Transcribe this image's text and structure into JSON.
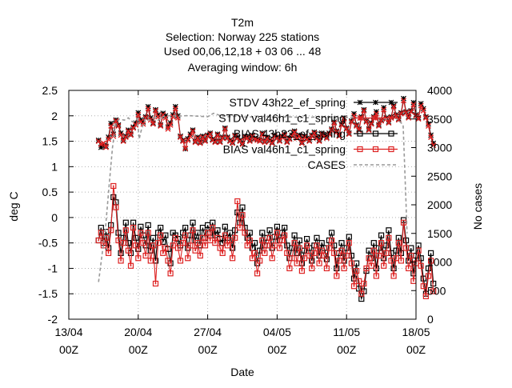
{
  "chart_data": {
    "type": "line",
    "title_lines": [
      "T2m",
      "Selection: Norway    225 stations",
      "Used  00,06,12,18  + 03 06 ... 48",
      "Averaging window:  6h"
    ],
    "xlabel": "Date",
    "ylabel": "deg C",
    "y2label": "No cases",
    "xlim_days": [
      13,
      48
    ],
    "ylim": [
      -2,
      2.5
    ],
    "y2lim": [
      0,
      4000
    ],
    "x_ticks": [
      {
        "day": 13,
        "label1": "13/04",
        "label2": "00Z"
      },
      {
        "day": 20,
        "label1": "20/04",
        "label2": "00Z"
      },
      {
        "day": 27,
        "label1": "27/04",
        "label2": "00Z"
      },
      {
        "day": 34,
        "label1": "04/05",
        "label2": "00Z"
      },
      {
        "day": 41,
        "label1": "11/05",
        "label2": "00Z"
      },
      {
        "day": 48,
        "label1": "18/05",
        "label2": "00Z"
      }
    ],
    "y_ticks": [
      -2,
      -1.5,
      -1,
      -0.5,
      0,
      0.5,
      1,
      1.5,
      2,
      2.5
    ],
    "y2_ticks": [
      0,
      500,
      1000,
      1500,
      2000,
      2500,
      3000,
      3500,
      4000
    ],
    "grid": true,
    "legend_position": "top-right",
    "series": [
      {
        "name": "STDV 43h22_ef_spring",
        "axis": "y",
        "color": "#000000",
        "marker": "star",
        "x_start": 16.0,
        "x_step": 0.25,
        "values": [
          1.52,
          1.38,
          1.42,
          1.4,
          1.58,
          1.85,
          1.64,
          1.92,
          1.82,
          1.66,
          1.52,
          1.6,
          1.72,
          1.64,
          1.78,
          1.86,
          2.06,
          1.92,
          1.88,
          1.98,
          2.18,
          1.96,
          1.86,
          2.12,
          2.02,
          1.82,
          2.05,
          2.0,
          1.78,
          1.86,
          2.02,
          2.18,
          2.0,
          1.6,
          1.52,
          1.35,
          1.55,
          1.64,
          1.72,
          1.5,
          1.58,
          1.48,
          1.6,
          1.52,
          1.62,
          1.66,
          1.54,
          1.5,
          1.64,
          1.5,
          1.58,
          1.76,
          1.58,
          1.52,
          1.48,
          1.62,
          1.58,
          1.52,
          1.46,
          1.6,
          1.58,
          1.52,
          1.62,
          1.56,
          1.54,
          1.52,
          1.66,
          1.5,
          1.58,
          1.52,
          1.48,
          1.62,
          1.58,
          1.52,
          1.6,
          1.64,
          1.5,
          1.56,
          1.62,
          1.7,
          1.58,
          1.62,
          1.48,
          1.6,
          1.56,
          1.52,
          1.62,
          1.68,
          1.58,
          1.52,
          1.66,
          1.62,
          1.58,
          1.66,
          1.74,
          1.88,
          1.7,
          1.62,
          1.84,
          1.96,
          1.76,
          1.66,
          1.9,
          2.04,
          1.82,
          1.74,
          1.98,
          2.12,
          1.9,
          1.74,
          1.86,
          1.98,
          2.08,
          1.82,
          1.92,
          2.16,
          1.96,
          1.88,
          1.98,
          2.2,
          2.02,
          1.94,
          2.06,
          2.34,
          2.08,
          1.98,
          2.1,
          2.26,
          2.02,
          1.96,
          2.24,
          2.14,
          1.98,
          1.84,
          1.62,
          1.46
        ]
      },
      {
        "name": "STDV val46h1_c1_spring",
        "axis": "y",
        "color": "#dd2222",
        "marker": "cross",
        "x_start": 16.0,
        "x_step": 0.25,
        "values": [
          1.5,
          1.44,
          1.46,
          1.38,
          1.54,
          1.8,
          1.6,
          1.9,
          1.8,
          1.62,
          1.5,
          1.58,
          1.7,
          1.62,
          1.76,
          1.82,
          2.02,
          1.88,
          1.84,
          1.96,
          2.14,
          1.92,
          1.84,
          2.1,
          1.98,
          1.8,
          2.02,
          1.96,
          1.74,
          1.82,
          1.98,
          2.14,
          1.96,
          1.58,
          1.5,
          1.36,
          1.52,
          1.6,
          1.7,
          1.48,
          1.56,
          1.46,
          1.58,
          1.5,
          1.6,
          1.64,
          1.52,
          1.48,
          1.62,
          1.48,
          1.56,
          1.74,
          1.56,
          1.5,
          1.46,
          1.6,
          1.56,
          1.5,
          1.44,
          1.58,
          1.56,
          1.5,
          1.6,
          1.54,
          1.52,
          1.5,
          1.64,
          1.48,
          1.56,
          1.5,
          1.46,
          1.6,
          1.56,
          1.5,
          1.58,
          1.62,
          1.48,
          1.54,
          1.6,
          1.68,
          1.56,
          1.6,
          1.46,
          1.58,
          1.54,
          1.5,
          1.6,
          1.66,
          1.56,
          1.5,
          1.64,
          1.6,
          1.56,
          1.64,
          1.72,
          1.86,
          1.68,
          1.6,
          1.82,
          1.94,
          1.74,
          1.64,
          1.88,
          2.0,
          1.8,
          1.72,
          1.96,
          2.1,
          1.88,
          1.72,
          1.84,
          1.96,
          2.04,
          1.8,
          1.9,
          2.12,
          1.94,
          1.86,
          1.96,
          2.18,
          2.0,
          1.92,
          2.04,
          2.3,
          2.06,
          1.96,
          2.08,
          2.22,
          2.0,
          1.94,
          2.2,
          2.1,
          1.96,
          1.8,
          1.58,
          1.42
        ]
      },
      {
        "name": "BIAS 43h22_ef_spring",
        "axis": "y",
        "color": "#000000",
        "marker": "open-square",
        "x_start": 16.0,
        "x_step": 0.25,
        "values": [
          -0.45,
          -0.2,
          -0.5,
          -0.28,
          -0.6,
          -0.15,
          0.4,
          0.3,
          -0.3,
          -0.7,
          -0.4,
          -0.1,
          -0.5,
          -0.7,
          -0.1,
          -0.4,
          -0.62,
          -0.18,
          -0.35,
          -0.55,
          -0.15,
          -0.65,
          -0.4,
          -0.85,
          -0.3,
          -0.2,
          -0.48,
          -0.35,
          -0.62,
          -0.9,
          -0.3,
          -0.35,
          -0.42,
          -0.55,
          -0.3,
          -0.2,
          -0.6,
          -0.35,
          -0.1,
          -0.45,
          -0.3,
          -0.55,
          -0.2,
          -0.4,
          -0.15,
          -0.3,
          -0.1,
          -0.35,
          -0.25,
          -0.42,
          -0.5,
          -0.18,
          -0.4,
          -0.3,
          -0.6,
          -0.25,
          0.1,
          -0.1,
          0.2,
          -0.2,
          -0.4,
          -0.3,
          -0.6,
          -0.5,
          -0.9,
          -0.65,
          -0.3,
          -0.55,
          -0.4,
          -0.25,
          -0.6,
          -0.38,
          -0.18,
          -0.45,
          -0.3,
          -0.2,
          -0.55,
          -0.8,
          -0.6,
          -0.35,
          -0.7,
          -0.45,
          -0.9,
          -0.65,
          -0.42,
          -0.6,
          -0.85,
          -0.55,
          -0.4,
          -0.75,
          -0.5,
          -0.6,
          -0.82,
          -0.45,
          -0.3,
          -0.55,
          -1.0,
          -0.7,
          -0.5,
          -0.85,
          -0.6,
          -0.38,
          -0.75,
          -1.2,
          -0.9,
          -1.4,
          -1.6,
          -1.45,
          -1.05,
          -0.65,
          -0.8,
          -0.5,
          -1.0,
          -0.6,
          -0.35,
          -0.8,
          -0.55,
          -0.25,
          -0.7,
          -1.0,
          -0.65,
          -0.4,
          -0.7,
          -0.05,
          -0.45,
          -0.85,
          -0.6,
          -1.1,
          -0.75,
          -0.55,
          -0.8,
          -1.2,
          -1.5,
          -1.0,
          -0.7,
          -1.3
        ]
      },
      {
        "name": "BIAS val46h1_c1_spring",
        "axis": "y",
        "color": "#dd2222",
        "marker": "dotted-square",
        "x_start": 16.0,
        "x_step": 0.25,
        "values": [
          -0.45,
          -0.3,
          -0.55,
          -0.4,
          -0.7,
          -0.25,
          0.62,
          0.2,
          -0.45,
          -0.85,
          -0.5,
          -0.25,
          -0.65,
          -0.95,
          -0.2,
          -0.55,
          -0.8,
          -0.3,
          -0.5,
          -0.75,
          -0.3,
          -0.85,
          -0.55,
          -1.3,
          -0.5,
          -0.35,
          -0.7,
          -0.6,
          -0.85,
          -1.1,
          -0.55,
          -0.4,
          -0.6,
          -0.85,
          -0.5,
          -0.35,
          -0.8,
          -0.55,
          -0.25,
          -0.65,
          -0.5,
          -0.75,
          -0.4,
          -0.55,
          -0.3,
          -0.45,
          -0.2,
          -0.5,
          -0.4,
          -0.6,
          -0.7,
          -0.35,
          -0.55,
          -0.45,
          -0.8,
          -0.4,
          0.32,
          -0.2,
          0.05,
          -0.3,
          -0.55,
          -0.45,
          -0.8,
          -0.7,
          -1.1,
          -0.85,
          -0.45,
          -0.7,
          -0.55,
          -0.4,
          -0.8,
          -0.55,
          -0.3,
          -0.6,
          -0.45,
          -0.35,
          -0.7,
          -1.0,
          -0.8,
          -0.5,
          -0.9,
          -0.6,
          -1.05,
          -0.8,
          -0.55,
          -0.75,
          -1.0,
          -0.7,
          -0.55,
          -0.9,
          -0.65,
          -0.75,
          -1.0,
          -0.6,
          -0.45,
          -0.7,
          -1.15,
          -0.85,
          -0.65,
          -1.0,
          -0.75,
          -0.5,
          -0.9,
          -1.35,
          -1.05,
          -1.25,
          -1.5,
          -1.3,
          -1.0,
          -0.8,
          -0.95,
          -0.65,
          -1.15,
          -0.75,
          -0.5,
          -0.95,
          -0.7,
          -0.4,
          -0.85,
          -1.15,
          -0.8,
          -0.5,
          -0.85,
          -0.1,
          -0.6,
          -1.0,
          -0.75,
          -1.25,
          -0.9,
          -0.65,
          -0.95,
          -1.35,
          -1.55,
          -1.15,
          -0.85,
          -1.45
        ]
      },
      {
        "name": "CASES",
        "axis": "y2",
        "color": "#999999",
        "style": "dashed",
        "points": [
          [
            16.0,
            650
          ],
          [
            16.7,
            1600
          ],
          [
            17.1,
            2400
          ],
          [
            17.4,
            3000
          ],
          [
            17.7,
            3400
          ],
          [
            18.1,
            3500
          ],
          [
            18.6,
            3480
          ],
          [
            19.0,
            3520
          ],
          [
            19.4,
            3450
          ],
          [
            19.9,
            3500
          ],
          [
            20.1,
            3150
          ],
          [
            20.3,
            3300
          ],
          [
            20.7,
            3500
          ],
          [
            21.2,
            3480
          ],
          [
            21.6,
            3520
          ],
          [
            22.0,
            3480
          ],
          [
            22.6,
            3550
          ],
          [
            23.3,
            3560
          ],
          [
            24.0,
            3550
          ],
          [
            25.0,
            3560
          ],
          [
            26.0,
            3550
          ],
          [
            27.0,
            3540
          ],
          [
            27.6,
            3600
          ],
          [
            28.3,
            3560
          ],
          [
            29.0,
            3540
          ],
          [
            30.0,
            3550
          ],
          [
            31.0,
            3530
          ],
          [
            32.0,
            3550
          ],
          [
            33.0,
            3540
          ],
          [
            34.0,
            3530
          ],
          [
            35.0,
            3540
          ],
          [
            36.0,
            3530
          ],
          [
            37.0,
            3520
          ],
          [
            38.0,
            3540
          ],
          [
            39.0,
            3530
          ],
          [
            40.0,
            3520
          ],
          [
            41.0,
            3530
          ],
          [
            42.0,
            3520
          ],
          [
            43.0,
            3510
          ],
          [
            44.0,
            3520
          ],
          [
            45.0,
            3500
          ],
          [
            46.0,
            3510
          ],
          [
            46.7,
            3400
          ],
          [
            47.0,
            2000
          ],
          [
            47.1,
            1500
          ]
        ]
      }
    ]
  }
}
